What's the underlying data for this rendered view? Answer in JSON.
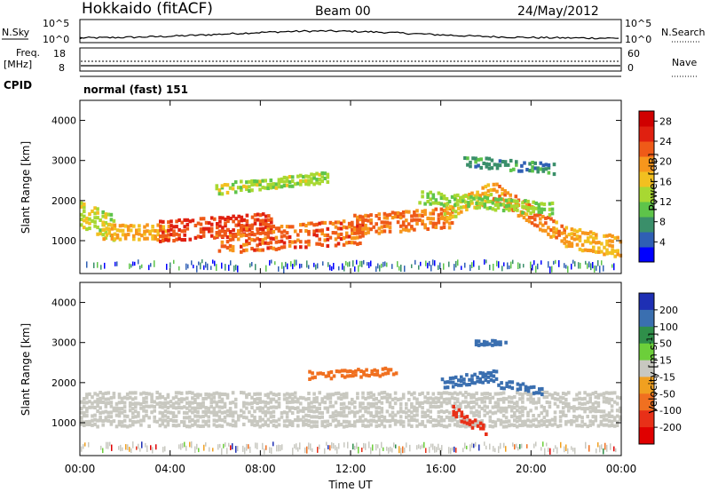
{
  "header": {
    "station": "Hokkaido (fitACF)",
    "beam": "Beam 00",
    "date": "24/May/2012"
  },
  "top_panels": {
    "nsky_label": "N.Sky",
    "nsearch_label": "N.Search",
    "nsky_ticks": [
      "10^5",
      "10^0"
    ],
    "nsearch_ticks": [
      "10^5",
      "10^0"
    ],
    "freq_label": [
      "Freq.",
      "[MHz]"
    ],
    "freq_ticks": [
      "18",
      "8"
    ],
    "nave_label": "Nave",
    "nave_ticks": [
      "60",
      "0"
    ],
    "cpid_label": "CPID",
    "cpid_text": "normal (fast) 151"
  },
  "chart_data": [
    {
      "type": "heatmap",
      "name": "power",
      "xlabel": "",
      "ylabel": "Slant Range [km]",
      "xlim": [
        0,
        24
      ],
      "ylim": [
        180,
        4500
      ],
      "y_ticks": [
        "1000",
        "2000",
        "3000",
        "4000"
      ],
      "colorbar": {
        "label": "Power [dB]",
        "ticks": [
          "4",
          "8",
          "12",
          "16",
          "20",
          "24",
          "28"
        ],
        "colors": [
          "#0000ff",
          "#2f5fb4",
          "#3a8f6a",
          "#5ec44a",
          "#a8d832",
          "#f2c020",
          "#f7961c",
          "#ef5a18",
          "#e02010",
          "#d00000"
        ],
        "range": [
          0,
          30
        ]
      },
      "bands": [
        {
          "t0": 0.0,
          "t1": 1.5,
          "r_center": [
            1700,
            1300
          ],
          "width": 700,
          "level": 14
        },
        {
          "t0": 1.0,
          "t1": 4.0,
          "r_center": [
            1250,
            1200
          ],
          "width": 450,
          "level": 18
        },
        {
          "t0": 3.5,
          "t1": 8.5,
          "r_center": [
            1250,
            1450
          ],
          "width": 550,
          "level": 25
        },
        {
          "t0": 6.0,
          "t1": 12.5,
          "r_center": [
            1000,
            1250
          ],
          "width": 650,
          "level": 23
        },
        {
          "t0": 12.0,
          "t1": 16.5,
          "r_center": [
            1400,
            1600
          ],
          "width": 550,
          "level": 22
        },
        {
          "t0": 16.0,
          "t1": 18.3,
          "r_center": [
            1700,
            2250
          ],
          "width": 500,
          "level": 17
        },
        {
          "t0": 18.3,
          "t1": 21.5,
          "r_center": [
            2250,
            1100
          ],
          "width": 500,
          "level": 21
        },
        {
          "t0": 21.5,
          "t1": 24.0,
          "r_center": [
            1100,
            850
          ],
          "width": 550,
          "level": 18
        },
        {
          "t0": 6.0,
          "t1": 11.0,
          "r_center": [
            2300,
            2600
          ],
          "width": 300,
          "level": 13
        },
        {
          "t0": 15.0,
          "t1": 21.0,
          "r_center": [
            2100,
            1800
          ],
          "width": 350,
          "level": 12
        },
        {
          "t0": 17.0,
          "t1": 21.0,
          "r_center": [
            3000,
            2800
          ],
          "width": 300,
          "level": 6
        }
      ]
    },
    {
      "type": "heatmap",
      "name": "velocity",
      "xlabel": "Time UT",
      "ylabel": "Slant Range [km]",
      "xlim": [
        0,
        24
      ],
      "ylim": [
        180,
        4500
      ],
      "x_ticks": [
        "00:00",
        "04:00",
        "08:00",
        "12:00",
        "16:00",
        "20:00",
        "00:00"
      ],
      "y_ticks": [
        "1000",
        "2000",
        "3000",
        "4000"
      ],
      "colorbar": {
        "label": "Velocity [m s^-1]",
        "ticks": [
          "200",
          "100",
          "50",
          "15",
          "-15",
          "-50",
          "-100",
          "-200"
        ],
        "colors": [
          "#1e2fb4",
          "#3a6fb0",
          "#2f8f4a",
          "#6ccf3a",
          "#c8c8c0",
          "#f0a020",
          "#f07020",
          "#e83018",
          "#e00000"
        ]
      },
      "bands": [
        {
          "t0": 0.0,
          "t1": 24.0,
          "r_center": [
            1350,
            1350
          ],
          "width": 900,
          "level": 0
        },
        {
          "t0": 16.0,
          "t1": 18.5,
          "r_center": [
            2000,
            2200
          ],
          "width": 300,
          "level": 60
        },
        {
          "t0": 18.5,
          "t1": 20.5,
          "r_center": [
            2000,
            1800
          ],
          "width": 250,
          "level": 55
        },
        {
          "t0": 17.5,
          "t1": 19.0,
          "r_center": [
            3000,
            3000
          ],
          "width": 150,
          "level": 60
        },
        {
          "t0": 16.5,
          "t1": 18.0,
          "r_center": [
            1300,
            800
          ],
          "width": 300,
          "level": -60
        },
        {
          "t0": 10.0,
          "t1": 14.0,
          "r_center": [
            2200,
            2300
          ],
          "width": 250,
          "level": -20
        }
      ]
    }
  ]
}
